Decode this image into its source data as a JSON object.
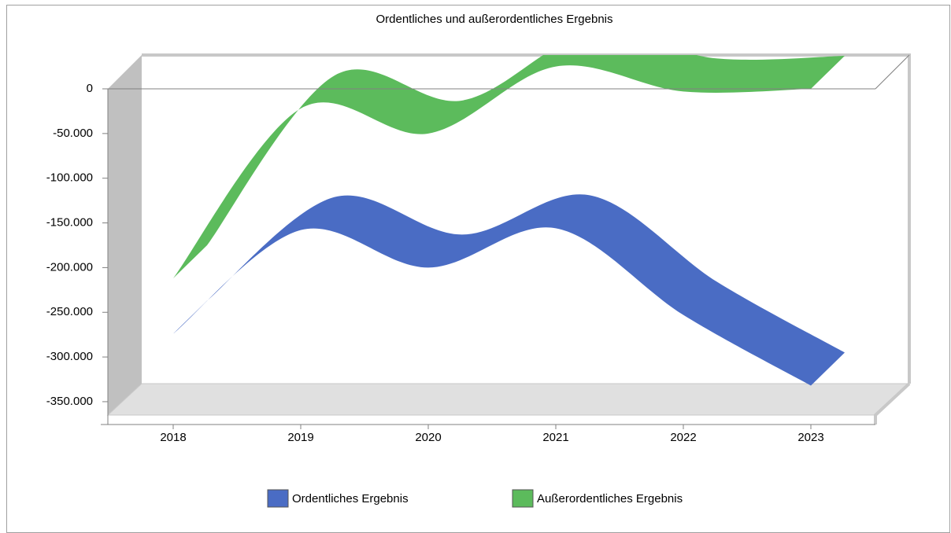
{
  "chart_data": {
    "type": "line",
    "title": "Ordentliches und außerordentliches Ergebnis",
    "categories": [
      "2018",
      "2019",
      "2020",
      "2021",
      "2022",
      "2023"
    ],
    "series": [
      {
        "name": "Ordentliches Ergebnis",
        "color": "#4a6cc4",
        "values": [
          -274000,
          -158000,
          -200000,
          -156000,
          -253000,
          -332000
        ]
      },
      {
        "name": "Außerordentliches Ergebnis",
        "color": "#5cbb5c",
        "values": [
          -212000,
          -22000,
          -50000,
          25000,
          -3000,
          0
        ]
      }
    ],
    "ylim": [
      -365000,
      0
    ],
    "yticks": [
      0,
      {
        "value": -50000,
        "label": "-50.000"
      },
      {
        "value": -100000,
        "label": "-100.000"
      },
      {
        "value": -150000,
        "label": "-150.000"
      },
      {
        "value": -200000,
        "label": "-200.000"
      },
      {
        "value": -250000,
        "label": "-250.000"
      },
      {
        "value": -300000,
        "label": "-300.000"
      },
      {
        "value": -350000,
        "label": "-350.000"
      }
    ],
    "legend": "bottom",
    "grid": false
  }
}
